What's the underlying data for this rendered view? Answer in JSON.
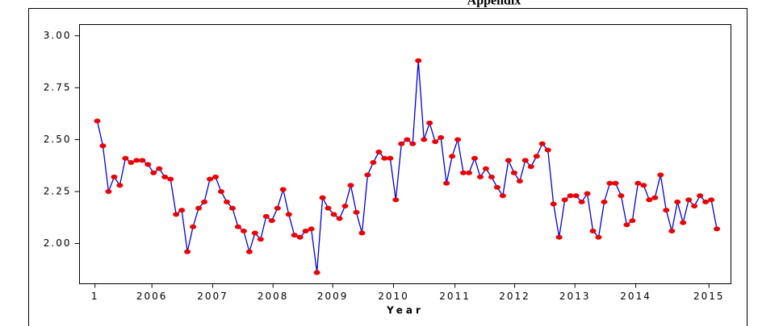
{
  "chart_data": {
    "type": "line",
    "title": "Appendix",
    "x_label": "Year",
    "x": [
      1,
      2,
      3,
      4,
      5,
      6,
      7,
      8,
      9,
      10,
      11,
      12,
      13,
      14,
      15,
      16,
      17,
      18,
      19,
      20,
      21,
      22,
      23,
      24,
      25,
      26,
      27,
      28,
      29,
      30,
      31,
      32,
      33,
      34,
      35,
      36,
      37,
      38,
      39,
      40,
      41,
      42,
      43,
      44,
      45,
      46,
      47,
      48,
      49,
      50,
      51,
      52,
      53,
      54,
      55,
      56,
      57,
      58,
      59,
      60,
      61,
      62,
      63,
      64,
      65,
      66,
      67,
      68,
      69,
      70,
      71,
      72,
      73,
      74,
      75,
      76,
      77,
      78,
      79,
      80,
      81,
      82,
      83,
      84,
      85,
      86,
      87,
      88,
      89,
      90,
      91,
      92,
      93,
      94,
      95,
      96,
      97,
      98,
      99,
      100,
      101,
      102,
      103,
      104,
      105,
      106,
      107,
      108,
      109,
      110,
      111
    ],
    "series": [
      {
        "color": "#0000dd",
        "marker_color": "#ee0000",
        "values": [
          2.59,
          2.47,
          2.25,
          2.32,
          2.28,
          2.41,
          2.39,
          2.4,
          2.4,
          2.38,
          2.34,
          2.36,
          2.32,
          2.31,
          2.14,
          2.16,
          1.96,
          2.08,
          2.17,
          2.2,
          2.31,
          2.32,
          2.25,
          2.2,
          2.17,
          2.08,
          2.06,
          1.96,
          2.05,
          2.02,
          2.13,
          2.11,
          2.17,
          2.26,
          2.14,
          2.04,
          2.03,
          2.06,
          2.07,
          1.86,
          2.22,
          2.17,
          2.14,
          2.12,
          2.18,
          2.28,
          2.15,
          2.05,
          2.33,
          2.39,
          2.44,
          2.41,
          2.41,
          2.21,
          2.48,
          2.5,
          2.48,
          2.88,
          2.5,
          2.58,
          2.49,
          2.51,
          2.29,
          2.42,
          2.5,
          2.34,
          2.34,
          2.41,
          2.32,
          2.36,
          2.32,
          2.27,
          2.23,
          2.4,
          2.34,
          2.3,
          2.4,
          2.37,
          2.42,
          2.48,
          2.45,
          2.19,
          2.03,
          2.21,
          2.23,
          2.23,
          2.2,
          2.24,
          2.06,
          2.03,
          2.2,
          2.29,
          2.29,
          2.23,
          2.09,
          2.11,
          2.29,
          2.28,
          2.21,
          2.22,
          2.33,
          2.16,
          2.06,
          2.2,
          2.1,
          2.21,
          2.18,
          2.23,
          2.2,
          2.21,
          2.07
        ]
      }
    ],
    "xlim": [
      -2.15,
      113.5
    ],
    "xticks": [
      {
        "value": 0.6,
        "label": "1"
      },
      {
        "value": 10.7,
        "label": "2006"
      },
      {
        "value": 21.5,
        "label": "2007"
      },
      {
        "value": 32.2,
        "label": "2008"
      },
      {
        "value": 42.8,
        "label": "2009"
      },
      {
        "value": 53.6,
        "label": "2010"
      },
      {
        "value": 64.5,
        "label": "2011"
      },
      {
        "value": 75.1,
        "label": "2012"
      },
      {
        "value": 85.8,
        "label": "2013"
      },
      {
        "value": 96.6,
        "label": "2014"
      },
      {
        "value": 109.6,
        "label": "2015"
      }
    ],
    "ylim": [
      1.806,
      3.054
    ],
    "yticks": [
      {
        "value": 2,
        "label": "2.00"
      },
      {
        "value": 2.25,
        "label": "2.25"
      },
      {
        "value": 2.5,
        "label": "2.50"
      },
      {
        "value": 2.75,
        "label": "2.75"
      },
      {
        "value": 3,
        "label": "3.00"
      }
    ]
  }
}
